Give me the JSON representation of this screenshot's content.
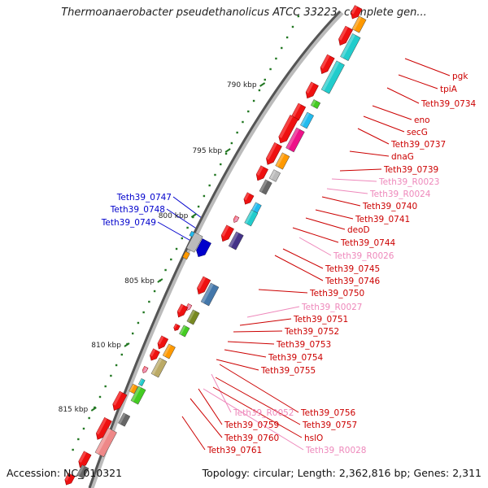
{
  "title": "Thermoanaerobacter pseudethanolicus ATCC 33223, complete gen...",
  "footer": {
    "accession": "Accession: NC_010321",
    "topology": "Topology: circular; Length: 2,362,816 bp; Genes: 2,311"
  },
  "colors": {
    "gene_red": "#ee1111",
    "cyan": "#22cccc",
    "magenta": "#ee1188",
    "orange": "#ff9900",
    "lightblue": "#22bbee",
    "olive": "#778822",
    "green": "#44cc22",
    "khaki": "#bbaa66",
    "gray": "#bbbbbb",
    "darkgray": "#666666",
    "steelblue": "#4477aa",
    "darkslate": "#443388",
    "pink": "#ee99bb",
    "salmon": "#ee8888",
    "label_red": "#cc0000",
    "label_pink": "#ee88bb",
    "label_blue": "#0000cc",
    "tick_green": "#227722"
  },
  "ticks": [
    {
      "label": "790 kbp"
    },
    {
      "label": "795 kbp"
    },
    {
      "label": "800 kbp"
    },
    {
      "label": "805 kbp"
    },
    {
      "label": "810 kbp"
    },
    {
      "label": "815 kbp"
    }
  ],
  "labels_right": [
    {
      "text": "pgk",
      "kind": "red"
    },
    {
      "text": "tpiA",
      "kind": "red"
    },
    {
      "text": "Teth39_0734",
      "kind": "red"
    },
    {
      "text": "eno",
      "kind": "red"
    },
    {
      "text": "secG",
      "kind": "red"
    },
    {
      "text": "Teth39_0737",
      "kind": "red"
    },
    {
      "text": "dnaG",
      "kind": "red"
    },
    {
      "text": "Teth39_0739",
      "kind": "red"
    },
    {
      "text": "Teth39_R0023",
      "kind": "pink"
    },
    {
      "text": "Teth39_R0024",
      "kind": "pink"
    },
    {
      "text": "Teth39_0740",
      "kind": "red"
    },
    {
      "text": "Teth39_0741",
      "kind": "red"
    },
    {
      "text": "deoD",
      "kind": "red"
    },
    {
      "text": "Teth39_0744",
      "kind": "red"
    },
    {
      "text": "Teth39_R0026",
      "kind": "pink"
    },
    {
      "text": "Teth39_0745",
      "kind": "red"
    },
    {
      "text": "Teth39_0746",
      "kind": "red"
    },
    {
      "text": "Teth39_0750",
      "kind": "red"
    },
    {
      "text": "Teth39_R0027",
      "kind": "pink"
    },
    {
      "text": "Teth39_0751",
      "kind": "red"
    },
    {
      "text": "Teth39_0752",
      "kind": "red"
    },
    {
      "text": "Teth39_0753",
      "kind": "red"
    },
    {
      "text": "Teth39_0754",
      "kind": "red"
    },
    {
      "text": "Teth39_0755",
      "kind": "red"
    },
    {
      "text": "Teth39_0756",
      "kind": "red"
    },
    {
      "text": "Teth39_R0052",
      "kind": "pink"
    },
    {
      "text": "Teth39_0757",
      "kind": "red"
    },
    {
      "text": "Teth39_0759",
      "kind": "red"
    },
    {
      "text": "hslO",
      "kind": "red"
    },
    {
      "text": "Teth39_0760",
      "kind": "red"
    },
    {
      "text": "Teth39_R0028",
      "kind": "pink"
    },
    {
      "text": "Teth39_0761",
      "kind": "red"
    }
  ],
  "labels_left": [
    {
      "text": "Teth39_0747",
      "kind": "blue"
    },
    {
      "text": "Teth39_0748",
      "kind": "blue"
    },
    {
      "text": "Teth39_0749",
      "kind": "blue"
    }
  ]
}
